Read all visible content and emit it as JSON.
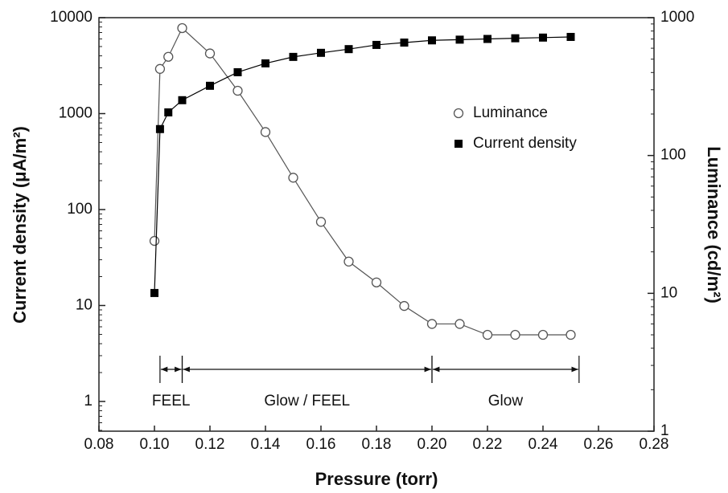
{
  "chart_data": {
    "type": "line",
    "x_label": "Pressure (torr)",
    "y_label": "Current density (μA/m²)",
    "y2_label": "Luminance (cd/m²)",
    "xlim": [
      0.08,
      0.28
    ],
    "xticks": [
      0.08,
      {
        "value": 0.1,
        "label": "0.10"
      },
      0.12,
      0.14,
      0.16,
      0.18,
      {
        "value": 0.2,
        "label": "0.20"
      },
      0.22,
      0.24,
      0.26,
      0.28
    ],
    "ylim": [
      0.49,
      10000
    ],
    "yticks": [
      1,
      10,
      100,
      1000,
      10000
    ],
    "y2lim": [
      1,
      1000
    ],
    "y2ticks": [
      1,
      10,
      100,
      1000
    ],
    "log_y": true,
    "log_y2": true,
    "legend": "upper right",
    "series": [
      {
        "name": "Luminance",
        "color": "#555555",
        "marker": "open-circle",
        "axis": "y2",
        "x": [
          0.1,
          0.102,
          0.105,
          0.11,
          0.12,
          0.13,
          0.14,
          0.15,
          0.16,
          0.17,
          0.18,
          0.19,
          0.2,
          0.21,
          0.22,
          0.23,
          0.24,
          0.25
        ],
        "values": [
          24,
          425,
          520,
          840,
          550,
          295,
          148,
          69,
          33,
          17,
          12,
          8.1,
          6,
          6,
          5,
          5,
          5,
          5
        ]
      },
      {
        "name": "Current density",
        "color": "#000000",
        "marker": "square",
        "x": [
          0.1,
          0.102,
          0.105,
          0.11,
          0.12,
          0.13,
          0.14,
          0.15,
          0.16,
          0.17,
          0.18,
          0.19,
          0.2,
          0.21,
          0.22,
          0.23,
          0.24,
          0.25
        ],
        "values": [
          13.5,
          690,
          1030,
          1380,
          1950,
          2700,
          3340,
          3900,
          4300,
          4700,
          5200,
          5500,
          5800,
          5900,
          6000,
          6100,
          6200,
          6300
        ]
      }
    ],
    "regions": [
      {
        "label": "FEEL",
        "from": 0.102,
        "to": 0.11
      },
      {
        "label": "Glow / FEEL",
        "from": 0.11,
        "to": 0.2
      },
      {
        "label": "Glow",
        "from": 0.2,
        "to": 0.253
      }
    ]
  }
}
